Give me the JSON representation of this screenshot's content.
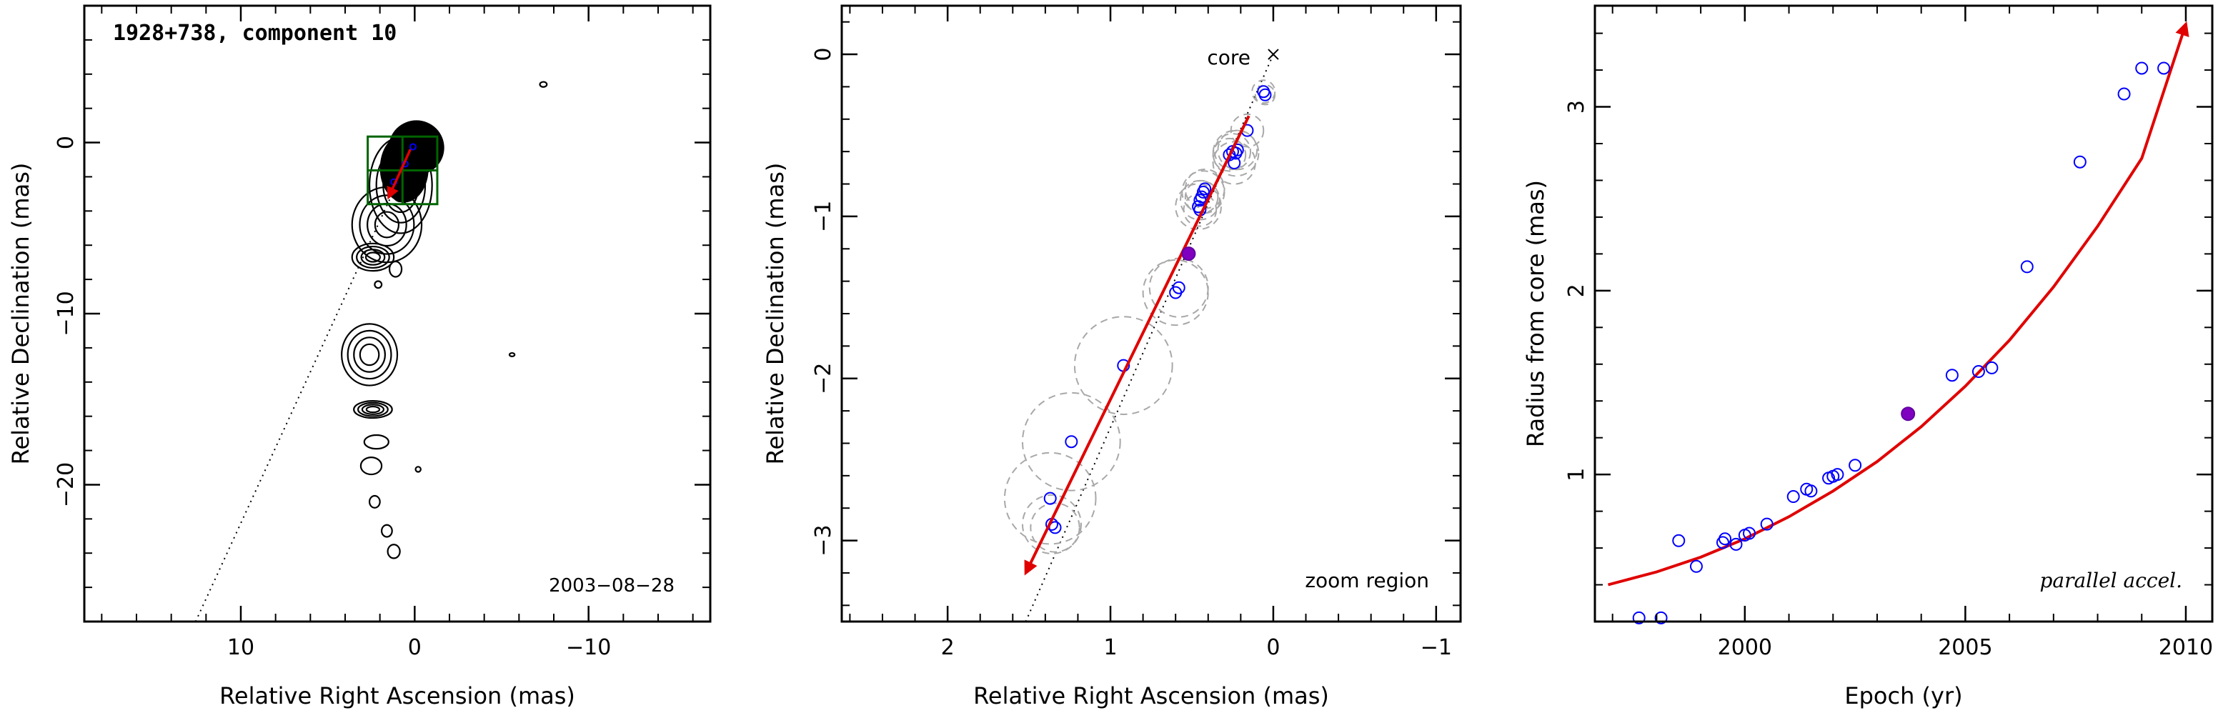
{
  "chart_data": [
    {
      "type": "contour",
      "title": "1928+738, component 10",
      "date_label": "2003−08−28",
      "xlabel": "Relative Right Ascension (mas)",
      "ylabel": "Relative Declination (mas)",
      "xlim": [
        19,
        -17
      ],
      "ylim": [
        -28,
        8
      ],
      "x_ticks": [
        10,
        0,
        -10
      ],
      "x_tick_labels": [
        "10",
        "0",
        "−10"
      ],
      "y_ticks": [
        0,
        -10,
        -20
      ],
      "y_tick_labels": [
        "0",
        "−10",
        "−20"
      ],
      "trajectory_line": {
        "x": [
          12.6,
          -0.2
        ],
        "y": [
          -28,
          0.3
        ]
      },
      "zoom_box": {
        "x": [
          -1.3,
          2.7
        ],
        "y": [
          -3.6,
          0.35
        ]
      },
      "components": [
        {
          "x": 1.2,
          "y": -2.3
        },
        {
          "x": 0.55,
          "y": -1.25
        },
        {
          "x": 0.1,
          "y": -0.25
        }
      ],
      "velocity_arrow": {
        "x": [
          0.25,
          1.5
        ],
        "y": [
          -0.4,
          -3.2
        ]
      },
      "contour_blobs": [
        {
          "x": 0.8,
          "y": -2.5,
          "rx": 1.8,
          "ry": 2.8
        },
        {
          "x": 1.6,
          "y": -4.8,
          "rx": 2.0,
          "ry": 2.2
        },
        {
          "x": 2.4,
          "y": -6.7,
          "rx": 1.2,
          "ry": 0.8
        },
        {
          "x": 1.1,
          "y": -7.4,
          "rx": 0.35,
          "ry": 0.45
        },
        {
          "x": 2.1,
          "y": -8.3,
          "rx": 0.2,
          "ry": 0.2
        },
        {
          "x": 2.6,
          "y": -12.4,
          "rx": 1.6,
          "ry": 1.8
        },
        {
          "x": 2.4,
          "y": -15.6,
          "rx": 1.1,
          "ry": 0.5
        },
        {
          "x": 2.2,
          "y": -17.5,
          "rx": 0.7,
          "ry": 0.4
        },
        {
          "x": 2.5,
          "y": -18.9,
          "rx": 0.6,
          "ry": 0.5
        },
        {
          "x": 2.3,
          "y": -21.0,
          "rx": 0.3,
          "ry": 0.35
        },
        {
          "x": 1.6,
          "y": -22.7,
          "rx": 0.3,
          "ry": 0.35
        },
        {
          "x": 1.2,
          "y": -23.9,
          "rx": 0.35,
          "ry": 0.4
        },
        {
          "x": -0.2,
          "y": -19.1,
          "rx": 0.15,
          "ry": 0.15
        },
        {
          "x": -5.6,
          "y": -12.4,
          "rx": 0.15,
          "ry": 0.1
        },
        {
          "x": -7.4,
          "y": 3.4,
          "rx": 0.2,
          "ry": 0.15
        }
      ]
    },
    {
      "type": "scatter",
      "corner_label": "zoom region",
      "core_label": "core",
      "xlabel": "Relative Right Ascension (mas)",
      "ylabel": "Relative Declination (mas)",
      "xlim": [
        2.65,
        -1.15
      ],
      "ylim": [
        -3.5,
        0.3
      ],
      "x_ticks": [
        2,
        1,
        0,
        -1
      ],
      "x_tick_labels": [
        "2",
        "1",
        "0",
        "−1"
      ],
      "y_ticks": [
        0,
        -1,
        -2,
        -3
      ],
      "y_tick_labels": [
        "0",
        "−1",
        "−2",
        "−3"
      ],
      "core_position": {
        "x": 0,
        "y": 0
      },
      "trajectory_line": {
        "x": [
          1.52,
          0
        ],
        "y": [
          -3.5,
          0
        ]
      },
      "velocity_arrow": {
        "x": [
          0.15,
          1.52
        ],
        "y": [
          -0.38,
          -3.2
        ]
      },
      "reference_point": {
        "x": 0.52,
        "y": -1.23
      },
      "points": [
        {
          "x": 0.06,
          "y": -0.23,
          "r": 0.07
        },
        {
          "x": 0.05,
          "y": -0.25,
          "r": 0.06
        },
        {
          "x": 0.16,
          "y": -0.47,
          "r": 0.1
        },
        {
          "x": 0.22,
          "y": -0.59,
          "r": 0.12
        },
        {
          "x": 0.23,
          "y": -0.61,
          "r": 0.14
        },
        {
          "x": 0.25,
          "y": -0.6,
          "r": 0.11
        },
        {
          "x": 0.27,
          "y": -0.62,
          "r": 0.1
        },
        {
          "x": 0.24,
          "y": -0.67,
          "r": 0.13
        },
        {
          "x": 0.42,
          "y": -0.83,
          "r": 0.12
        },
        {
          "x": 0.43,
          "y": -0.85,
          "r": 0.13
        },
        {
          "x": 0.44,
          "y": -0.88,
          "r": 0.1
        },
        {
          "x": 0.45,
          "y": -0.9,
          "r": 0.12
        },
        {
          "x": 0.46,
          "y": -0.94,
          "r": 0.14
        },
        {
          "x": 0.45,
          "y": -0.96,
          "r": 0.1
        },
        {
          "x": 0.58,
          "y": -1.44,
          "r": 0.18
        },
        {
          "x": 0.6,
          "y": -1.47,
          "r": 0.2
        },
        {
          "x": 0.92,
          "y": -1.92,
          "r": 0.3
        },
        {
          "x": 1.24,
          "y": -2.39,
          "r": 0.3
        },
        {
          "x": 1.37,
          "y": -2.74,
          "r": 0.28
        },
        {
          "x": 1.36,
          "y": -2.9,
          "r": 0.18
        },
        {
          "x": 1.34,
          "y": -2.92,
          "r": 0.15
        }
      ]
    },
    {
      "type": "scatter",
      "corner_label": "parallel accel.",
      "xlabel": "Epoch (yr)",
      "ylabel": "Radius from core (mas)",
      "xlim": [
        1996.6,
        2010.6
      ],
      "ylim": [
        0.2,
        3.55
      ],
      "x_ticks": [
        2000,
        2005,
        2010
      ],
      "x_tick_labels": [
        "2000",
        "2005",
        "2010"
      ],
      "y_ticks": [
        1,
        2,
        3
      ],
      "y_tick_labels": [
        "1",
        "2",
        "3"
      ],
      "fit_curve": {
        "x": [
          1996.9,
          1998,
          1999,
          2000,
          2001,
          2002,
          2003,
          2004,
          2005,
          2006,
          2007,
          2008,
          2009,
          2010
        ],
        "y": [
          0.4,
          0.47,
          0.55,
          0.65,
          0.77,
          0.91,
          1.07,
          1.26,
          1.48,
          1.73,
          2.02,
          2.35,
          2.72,
          3.45
        ]
      },
      "reference_point": {
        "x": 2003.7,
        "y": 1.33
      },
      "points": [
        {
          "x": 1997.6,
          "y": 0.22
        },
        {
          "x": 1998.1,
          "y": 0.22
        },
        {
          "x": 1998.5,
          "y": 0.64
        },
        {
          "x": 1998.9,
          "y": 0.5
        },
        {
          "x": 1999.5,
          "y": 0.63
        },
        {
          "x": 1999.55,
          "y": 0.65
        },
        {
          "x": 1999.8,
          "y": 0.62
        },
        {
          "x": 2000.0,
          "y": 0.67
        },
        {
          "x": 2000.1,
          "y": 0.68
        },
        {
          "x": 2000.5,
          "y": 0.73
        },
        {
          "x": 2001.1,
          "y": 0.88
        },
        {
          "x": 2001.4,
          "y": 0.92
        },
        {
          "x": 2001.5,
          "y": 0.91
        },
        {
          "x": 2001.9,
          "y": 0.98
        },
        {
          "x": 2002.0,
          "y": 0.99
        },
        {
          "x": 2002.1,
          "y": 1.0
        },
        {
          "x": 2002.5,
          "y": 1.05
        },
        {
          "x": 2004.7,
          "y": 1.54
        },
        {
          "x": 2005.3,
          "y": 1.56
        },
        {
          "x": 2005.6,
          "y": 1.58
        },
        {
          "x": 2006.4,
          "y": 2.13
        },
        {
          "x": 2007.6,
          "y": 2.7
        },
        {
          "x": 2008.6,
          "y": 3.07
        },
        {
          "x": 2009.0,
          "y": 3.21
        },
        {
          "x": 2009.5,
          "y": 3.21
        }
      ]
    }
  ]
}
